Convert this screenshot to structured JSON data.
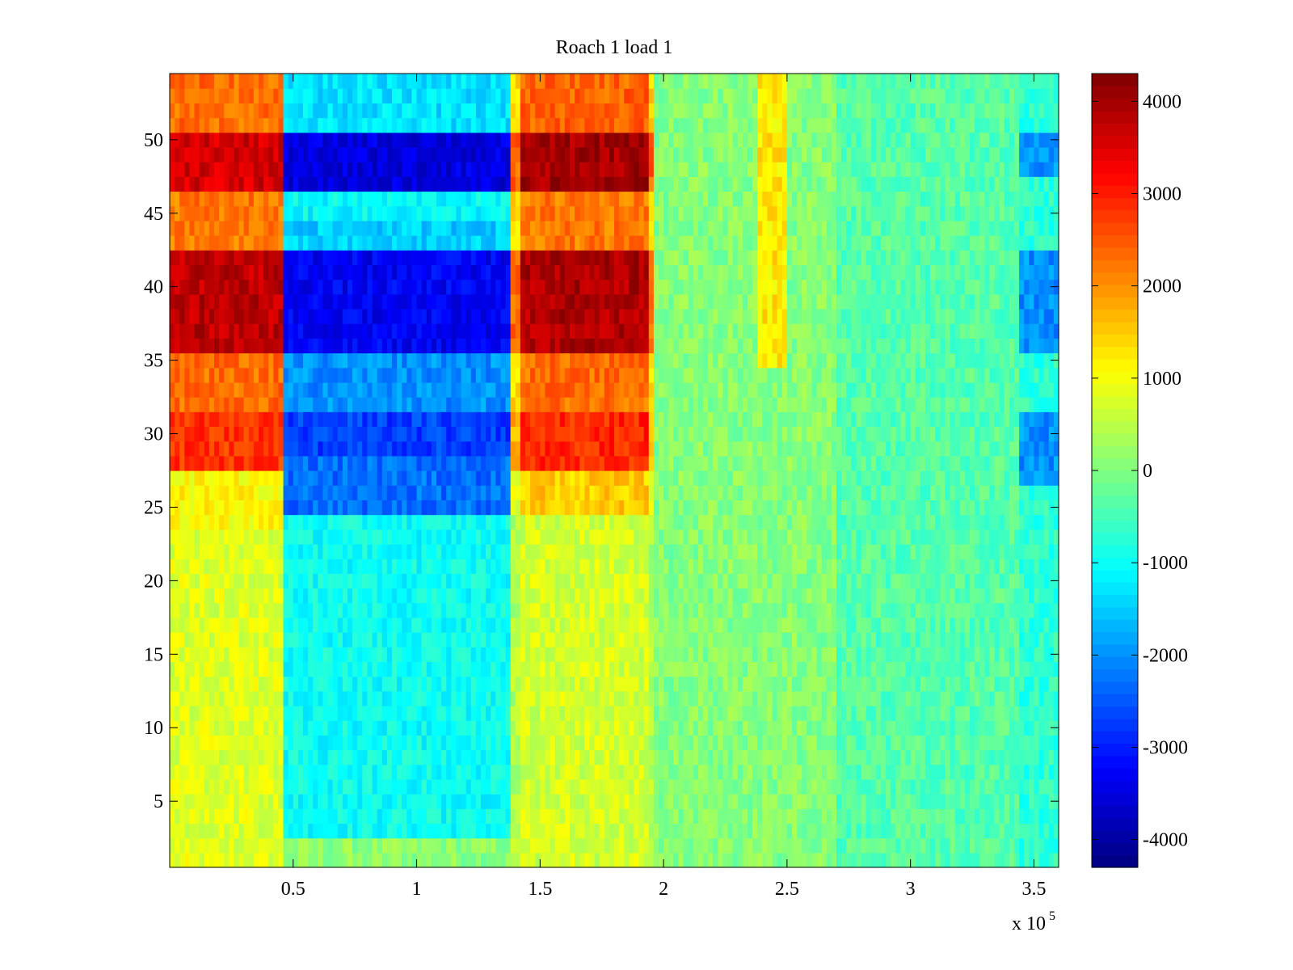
{
  "chart_data": {
    "type": "heatmap",
    "title": "Roach 1 load 1",
    "xlabel": "",
    "ylabel": "",
    "x_exponent_label": "x 10",
    "x_exponent": "5",
    "xlim": [
      0,
      3.6
    ],
    "ylim": [
      0.5,
      54.5
    ],
    "xticks": [
      0.5,
      1,
      1.5,
      2,
      2.5,
      3,
      3.5
    ],
    "xtick_labels": [
      "0.5",
      "1",
      "1.5",
      "2",
      "2.5",
      "3",
      "3.5"
    ],
    "yticks": [
      5,
      10,
      15,
      20,
      25,
      30,
      35,
      40,
      45,
      50
    ],
    "ytick_labels": [
      "5",
      "10",
      "15",
      "20",
      "25",
      "30",
      "35",
      "40",
      "45",
      "50"
    ],
    "rows": 54,
    "colormap": "jet",
    "colorbar": {
      "clim": [
        -4300,
        4300
      ],
      "ticks": [
        4000,
        3000,
        2000,
        1000,
        0,
        -1000,
        -2000,
        -3000,
        -4000
      ],
      "tick_labels": [
        "4000",
        "3000",
        "2000",
        "1000",
        "0",
        "-1000",
        "-2000",
        "-3000",
        "-4000"
      ]
    },
    "segments": [
      {
        "x_start": 0.0,
        "x_end": 0.47,
        "label": "positive block 1"
      },
      {
        "x_start": 0.47,
        "x_end": 1.37,
        "label": "negative block"
      },
      {
        "x_start": 1.37,
        "x_end": 1.97,
        "label": "positive block 2"
      },
      {
        "x_start": 1.97,
        "x_end": 3.43,
        "label": "near-zero region"
      },
      {
        "x_start": 3.43,
        "x_end": 3.6,
        "label": "negative block 2"
      }
    ]
  }
}
